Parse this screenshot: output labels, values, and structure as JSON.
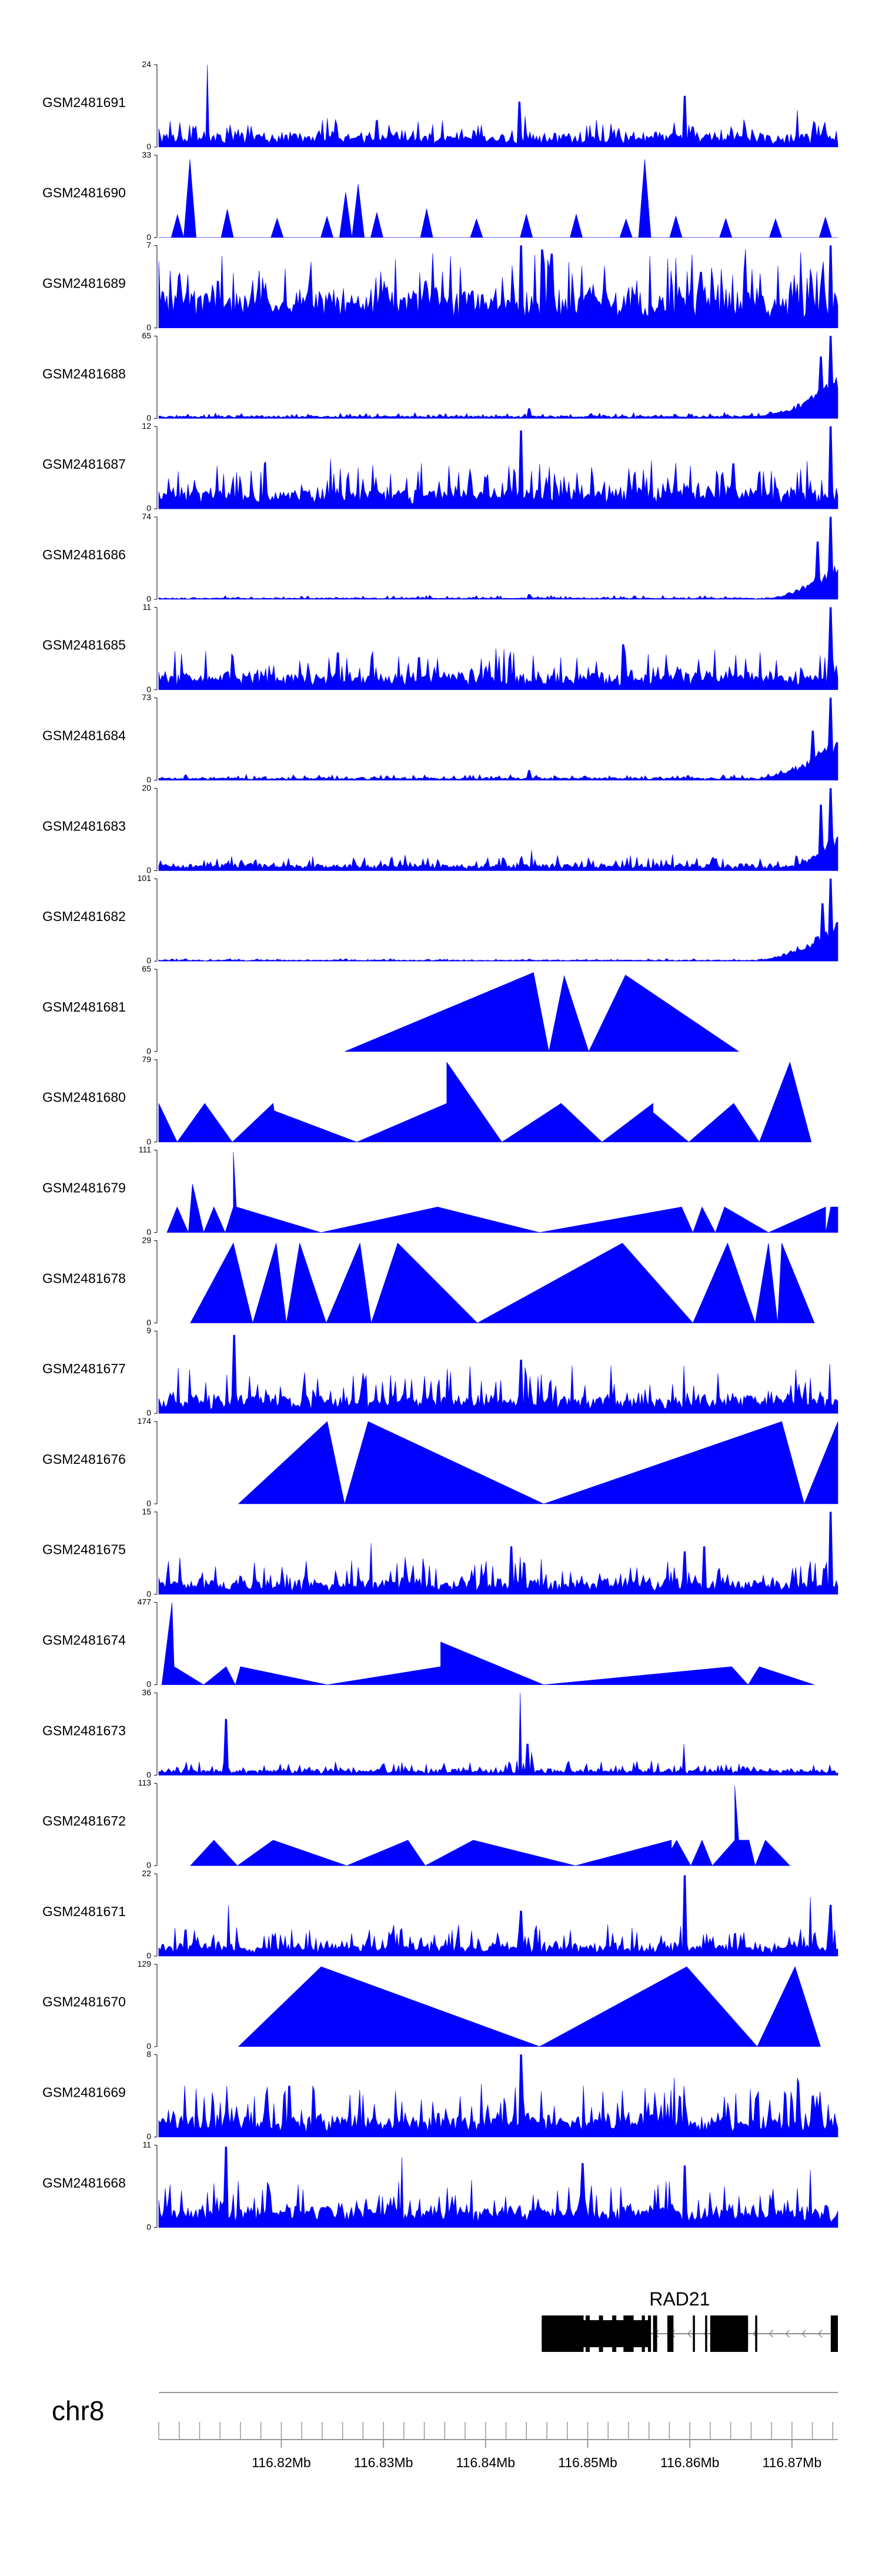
{
  "chart_data": {
    "type": "area",
    "title": "",
    "chromosome": "chr8",
    "xlim_mb": [
      116.808,
      116.8745
    ],
    "x_ticks_mb": [
      116.82,
      116.83,
      116.84,
      116.85,
      116.86,
      116.87
    ],
    "x_tick_labels": [
      "116.82Mb",
      "116.83Mb",
      "116.84Mb",
      "116.85Mb",
      "116.86Mb",
      "116.87Mb"
    ],
    "fill_color": "#0000ff",
    "tracks": [
      {
        "name": "GSM2481691",
        "ymax": 24,
        "style": "dense",
        "seed": 11,
        "base": 0.1,
        "var": 0.26,
        "peaks": [
          [
            116.8128,
            1.0
          ],
          [
            116.8433,
            0.55
          ],
          [
            116.8595,
            0.62
          ],
          [
            116.8705,
            0.45
          ],
          [
            116.8245,
            0.35
          ]
        ]
      },
      {
        "name": "GSM2481690",
        "ymax": 33,
        "style": "sparse",
        "seed": 12,
        "base": 0.22,
        "var": 0.15,
        "peaks": [
          [
            116.8111,
            0.95
          ],
          [
            116.8263,
            0.55
          ],
          [
            116.8275,
            0.65
          ],
          [
            116.8557,
            0.95
          ],
          [
            116.8395,
            0.4
          ]
        ]
      },
      {
        "name": "GSM2481689",
        "ymax": 7,
        "style": "dense",
        "seed": 13,
        "base": 0.3,
        "var": 0.62,
        "peaks": [
          [
            116.8435,
            1.0
          ],
          [
            116.8738,
            1.0
          ],
          [
            116.8465,
            0.9
          ],
          [
            116.8455,
            0.95
          ]
        ]
      },
      {
        "name": "GSM2481688",
        "ymax": 65,
        "style": "dense",
        "seed": 14,
        "base": 0.02,
        "var": 0.05,
        "ramp": [
          116.866,
          0.55
        ],
        "peaks": [
          [
            116.8443,
            0.12
          ],
          [
            116.8738,
            1.0
          ],
          [
            116.8728,
            0.75
          ]
        ]
      },
      {
        "name": "GSM2481687",
        "ymax": 12,
        "style": "dense",
        "seed": 15,
        "base": 0.15,
        "var": 0.42,
        "peaks": [
          [
            116.8435,
            0.95
          ],
          [
            116.8738,
            1.0
          ],
          [
            116.8183,
            0.55
          ],
          [
            116.8643,
            0.55
          ],
          [
            116.8275,
            0.5
          ]
        ]
      },
      {
        "name": "GSM2481686",
        "ymax": 74,
        "style": "dense",
        "seed": 16,
        "base": 0.01,
        "var": 0.04,
        "ramp": [
          116.867,
          0.5
        ],
        "peaks": [
          [
            116.8738,
            1.0
          ],
          [
            116.8725,
            0.7
          ],
          [
            116.8443,
            0.06
          ]
        ]
      },
      {
        "name": "GSM2481685",
        "ymax": 11,
        "style": "dense",
        "seed": 17,
        "base": 0.12,
        "var": 0.38,
        "peaks": [
          [
            116.8738,
            1.0
          ],
          [
            116.8535,
            0.55
          ],
          [
            116.8255,
            0.45
          ]
        ]
      },
      {
        "name": "GSM2481684",
        "ymax": 73,
        "style": "dense",
        "seed": 18,
        "base": 0.02,
        "var": 0.05,
        "ramp": [
          116.866,
          0.55
        ],
        "peaks": [
          [
            116.8738,
            1.0
          ],
          [
            116.8443,
            0.12
          ],
          [
            116.872,
            0.6
          ]
        ]
      },
      {
        "name": "GSM2481683",
        "ymax": 20,
        "style": "dense",
        "seed": 19,
        "base": 0.05,
        "var": 0.14,
        "ramp": [
          116.869,
          0.4
        ],
        "peaks": [
          [
            116.8738,
            1.0
          ],
          [
            116.8728,
            0.8
          ],
          [
            116.8445,
            0.25
          ]
        ]
      },
      {
        "name": "GSM2481682",
        "ymax": 101,
        "style": "dense",
        "seed": 20,
        "base": 0.01,
        "var": 0.02,
        "ramp": [
          116.866,
          0.55
        ],
        "peaks": [
          [
            116.8738,
            1.0
          ],
          [
            116.873,
            0.7
          ]
        ]
      },
      {
        "name": "GSM2481681",
        "ymax": 65,
        "style": "tri",
        "points": [
          [
            116.8262,
            0
          ],
          [
            116.8447,
            0.96
          ],
          [
            116.8462,
            0
          ],
          [
            116.8477,
            0.92
          ],
          [
            116.8501,
            0
          ],
          [
            116.8537,
            0.93
          ],
          [
            116.8648,
            0
          ]
        ]
      },
      {
        "name": "GSM2481680",
        "ymax": 79,
        "style": "tri",
        "points": [
          [
            116.808,
            0.47
          ],
          [
            116.8098,
            0
          ],
          [
            116.8125,
            0.47
          ],
          [
            116.8152,
            0
          ],
          [
            116.8192,
            0.47
          ],
          [
            116.8193,
            0.38
          ],
          [
            116.8274,
            0
          ],
          [
            116.8362,
            0.47
          ],
          [
            116.8362,
            0.97
          ],
          [
            116.8416,
            0
          ],
          [
            116.8474,
            0.47
          ],
          [
            116.8514,
            0
          ],
          [
            116.8564,
            0.47
          ],
          [
            116.8564,
            0.36
          ],
          [
            116.8599,
            0
          ],
          [
            116.8643,
            0.47
          ],
          [
            116.8668,
            0
          ],
          [
            116.8698,
            0.97
          ],
          [
            116.8719,
            0
          ]
        ]
      },
      {
        "name": "GSM2481679",
        "ymax": 111,
        "style": "tri",
        "points": [
          [
            116.8088,
            0
          ],
          [
            116.8098,
            0.31
          ],
          [
            116.8109,
            0
          ],
          [
            116.8113,
            0.59
          ],
          [
            116.8124,
            0
          ],
          [
            116.8134,
            0.31
          ],
          [
            116.8145,
            0
          ],
          [
            116.8153,
            0.31
          ],
          [
            116.8153,
            0.98
          ],
          [
            116.8156,
            0.31
          ],
          [
            116.8239,
            0
          ],
          [
            116.8353,
            0.31
          ],
          [
            116.8453,
            0
          ],
          [
            116.8592,
            0.31
          ],
          [
            116.8603,
            0
          ],
          [
            116.8612,
            0.31
          ],
          [
            116.8625,
            0
          ],
          [
            116.8634,
            0.31
          ],
          [
            116.8677,
            0
          ],
          [
            116.8733,
            0.31
          ],
          [
            116.8733,
            0
          ],
          [
            116.8738,
            0.31
          ],
          [
            116.8745,
            0.31
          ],
          [
            116.8745,
            0
          ]
        ]
      },
      {
        "name": "GSM2481678",
        "ymax": 29,
        "style": "tri",
        "points": [
          [
            116.8111,
            0
          ],
          [
            116.8153,
            0.97
          ],
          [
            116.8172,
            0
          ],
          [
            116.8195,
            0.97
          ],
          [
            116.8205,
            0
          ],
          [
            116.8218,
            0.97
          ],
          [
            116.8244,
            0
          ],
          [
            116.8277,
            0.97
          ],
          [
            116.8288,
            0
          ],
          [
            116.8314,
            0.97
          ],
          [
            116.8392,
            0
          ],
          [
            116.8534,
            0.97
          ],
          [
            116.8603,
            0
          ],
          [
            116.8637,
            0.97
          ],
          [
            116.8664,
            0
          ],
          [
            116.8677,
            0.97
          ],
          [
            116.8686,
            0
          ],
          [
            116.869,
            0.97
          ],
          [
            116.8722,
            0
          ]
        ]
      },
      {
        "name": "GSM2481677",
        "ymax": 9,
        "style": "dense",
        "seed": 21,
        "base": 0.12,
        "var": 0.45,
        "peaks": [
          [
            116.8154,
            0.95
          ],
          [
            116.8435,
            0.65
          ],
          [
            116.8737,
            0.6
          ],
          [
            116.8594,
            0.58
          ],
          [
            116.8223,
            0.5
          ]
        ]
      },
      {
        "name": "GSM2481676",
        "ymax": 174,
        "style": "tri",
        "points": [
          [
            116.8158,
            0
          ],
          [
            116.8245,
            1.0
          ],
          [
            116.8262,
            0
          ],
          [
            116.8285,
            1.0
          ],
          [
            116.8457,
            0
          ],
          [
            116.869,
            1.0
          ],
          [
            116.8712,
            0
          ],
          [
            116.8745,
            1.0
          ],
          [
            116.8745,
            0
          ]
        ]
      },
      {
        "name": "GSM2481675",
        "ymax": 15,
        "style": "dense",
        "seed": 22,
        "base": 0.1,
        "var": 0.35,
        "peaks": [
          [
            116.8738,
            1.0
          ],
          [
            116.8288,
            0.62
          ],
          [
            116.8425,
            0.58
          ],
          [
            116.8614,
            0.58
          ],
          [
            116.8595,
            0.52
          ]
        ]
      },
      {
        "name": "GSM2481674",
        "ymax": 477,
        "style": "tri",
        "points": [
          [
            116.8083,
            0
          ],
          [
            116.8093,
            1.0
          ],
          [
            116.8095,
            0.22
          ],
          [
            116.8124,
            0
          ],
          [
            116.8146,
            0.22
          ],
          [
            116.8155,
            0
          ],
          [
            116.816,
            0.22
          ],
          [
            116.8245,
            0
          ],
          [
            116.8356,
            0.22
          ],
          [
            116.8356,
            0.52
          ],
          [
            116.8457,
            0
          ],
          [
            116.8641,
            0.22
          ],
          [
            116.8657,
            0
          ],
          [
            116.8668,
            0.22
          ],
          [
            116.8722,
            0
          ]
        ]
      },
      {
        "name": "GSM2481673",
        "ymax": 36,
        "style": "dense",
        "seed": 23,
        "base": 0.04,
        "var": 0.14,
        "peaks": [
          [
            116.8434,
            1.0
          ],
          [
            116.8146,
            0.68
          ],
          [
            116.8441,
            0.38
          ],
          [
            116.8594,
            0.38
          ],
          [
            116.8445,
            0.28
          ]
        ]
      },
      {
        "name": "GSM2481672",
        "ymax": 113,
        "style": "tri",
        "points": [
          [
            116.8111,
            0
          ],
          [
            116.8134,
            0.31
          ],
          [
            116.8157,
            0
          ],
          [
            116.8192,
            0.31
          ],
          [
            116.8264,
            0
          ],
          [
            116.8324,
            0.31
          ],
          [
            116.8341,
            0
          ],
          [
            116.8388,
            0.31
          ],
          [
            116.8488,
            0
          ],
          [
            116.8582,
            0.31
          ],
          [
            116.8582,
            0.2
          ],
          [
            116.8587,
            0.31
          ],
          [
            116.8601,
            0
          ],
          [
            116.8612,
            0.31
          ],
          [
            116.8622,
            0
          ],
          [
            116.8644,
            0.31
          ],
          [
            116.8644,
            0.97
          ],
          [
            116.8648,
            0.31
          ],
          [
            116.8658,
            0.31
          ],
          [
            116.8664,
            0
          ],
          [
            116.8674,
            0.31
          ],
          [
            116.8698,
            0
          ]
        ]
      },
      {
        "name": "GSM2481671",
        "ymax": 22,
        "style": "dense",
        "seed": 24,
        "base": 0.08,
        "var": 0.3,
        "peaks": [
          [
            116.8595,
            0.98
          ],
          [
            116.8718,
            0.72
          ],
          [
            116.8738,
            0.62
          ],
          [
            116.8148,
            0.62
          ],
          [
            116.8435,
            0.55
          ]
        ]
      },
      {
        "name": "GSM2481670",
        "ymax": 129,
        "style": "tri",
        "points": [
          [
            116.8158,
            0
          ],
          [
            116.8239,
            0.97
          ],
          [
            116.8453,
            0
          ],
          [
            116.8597,
            0.97
          ],
          [
            116.8666,
            0
          ],
          [
            116.8703,
            0.97
          ],
          [
            116.8728,
            0
          ]
        ]
      },
      {
        "name": "GSM2481669",
        "ymax": 8,
        "style": "dense",
        "seed": 25,
        "base": 0.15,
        "var": 0.48,
        "peaks": [
          [
            116.8435,
            1.0
          ],
          [
            116.8585,
            0.72
          ],
          [
            116.8705,
            0.72
          ],
          [
            116.8208,
            0.62
          ],
          [
            116.8312,
            0.56
          ]
        ]
      },
      {
        "name": "GSM2481668",
        "ymax": 11,
        "style": "dense",
        "seed": 26,
        "base": 0.15,
        "var": 0.45,
        "peaks": [
          [
            116.8146,
            0.98
          ],
          [
            116.8318,
            0.85
          ],
          [
            116.8495,
            0.78
          ],
          [
            116.8595,
            0.75
          ],
          [
            116.8718,
            0.7
          ]
        ]
      }
    ],
    "gene": {
      "name": "RAD21",
      "strand": "-",
      "start_mb": 116.8455,
      "end_mb": 116.8745,
      "exons": [
        [
          116.8455,
          116.8496
        ],
        [
          116.8498,
          116.8502
        ],
        [
          116.8511,
          116.8515
        ],
        [
          116.8524,
          116.8528
        ],
        [
          116.8535,
          116.8545
        ],
        [
          116.8553,
          116.8556
        ],
        [
          116.8559,
          116.8562
        ],
        [
          116.8564,
          116.8568
        ],
        [
          116.8578,
          116.8584
        ],
        [
          116.8603,
          116.8605
        ],
        [
          116.8615,
          116.8617
        ],
        [
          116.862,
          116.8657
        ],
        [
          116.8664,
          116.8666
        ],
        [
          116.8738,
          116.8745
        ]
      ],
      "thick": [
        [
          116.8455,
          116.856
        ],
        [
          116.862,
          116.8657
        ]
      ]
    }
  }
}
